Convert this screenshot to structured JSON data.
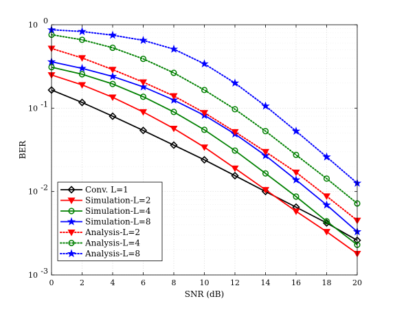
{
  "chart_data": {
    "type": "line",
    "xlabel": "SNR (dB)",
    "ylabel": "BER",
    "x": [
      0,
      2,
      4,
      6,
      8,
      10,
      12,
      14,
      16,
      18,
      20
    ],
    "xlim": [
      0,
      20
    ],
    "ylim": [
      0.001,
      1
    ],
    "yscale": "log",
    "xticks": [
      "0",
      "2",
      "4",
      "6",
      "8",
      "10",
      "12",
      "14",
      "16",
      "18",
      "20"
    ],
    "yticks": [
      {
        "value": 0.001,
        "base": "10",
        "exp": "-3"
      },
      {
        "value": 0.01,
        "base": "10",
        "exp": "-2"
      },
      {
        "value": 0.1,
        "base": "10",
        "exp": "-1"
      },
      {
        "value": 1,
        "base": "10",
        "exp": "0"
      }
    ],
    "grid": true,
    "legend_position": "bottom-left",
    "series": [
      {
        "name": "Conv. L=1",
        "color": "#000000",
        "line": "solid",
        "marker": "diamond",
        "values": [
          0.165,
          0.117,
          0.08,
          0.054,
          0.036,
          0.024,
          0.0155,
          0.01,
          0.0065,
          0.0042,
          0.0026
        ]
      },
      {
        "name": "Simulation-L=2",
        "color": "#ff0000",
        "line": "solid",
        "marker": "triangle-down",
        "values": [
          0.25,
          0.19,
          0.135,
          0.09,
          0.057,
          0.034,
          0.019,
          0.0105,
          0.0058,
          0.0033,
          0.0018
        ]
      },
      {
        "name": "Simulation-L=4",
        "color": "#008000",
        "line": "solid",
        "marker": "circle",
        "values": [
          0.31,
          0.255,
          0.195,
          0.137,
          0.09,
          0.055,
          0.031,
          0.0165,
          0.0087,
          0.0044,
          0.0023
        ]
      },
      {
        "name": "Simulation-L=8",
        "color": "#0000ff",
        "line": "solid",
        "marker": "star",
        "values": [
          0.36,
          0.3,
          0.24,
          0.18,
          0.125,
          0.082,
          0.049,
          0.027,
          0.0138,
          0.0069,
          0.0033
        ]
      },
      {
        "name": "Analysis-L=2",
        "color": "#ff0000",
        "line": "dotted",
        "marker": "triangle-down",
        "values": [
          0.52,
          0.4,
          0.29,
          0.205,
          0.14,
          0.088,
          0.052,
          0.03,
          0.017,
          0.0088,
          0.0045
        ]
      },
      {
        "name": "Analysis-L=4",
        "color": "#008000",
        "line": "dotted",
        "marker": "circle",
        "values": [
          0.76,
          0.66,
          0.53,
          0.39,
          0.265,
          0.165,
          0.097,
          0.053,
          0.0275,
          0.0143,
          0.0072
        ]
      },
      {
        "name": "Analysis-L=8",
        "color": "#0000ff",
        "line": "dotted",
        "marker": "star",
        "values": [
          0.87,
          0.83,
          0.75,
          0.65,
          0.51,
          0.34,
          0.2,
          0.106,
          0.053,
          0.026,
          0.0126
        ]
      }
    ]
  }
}
